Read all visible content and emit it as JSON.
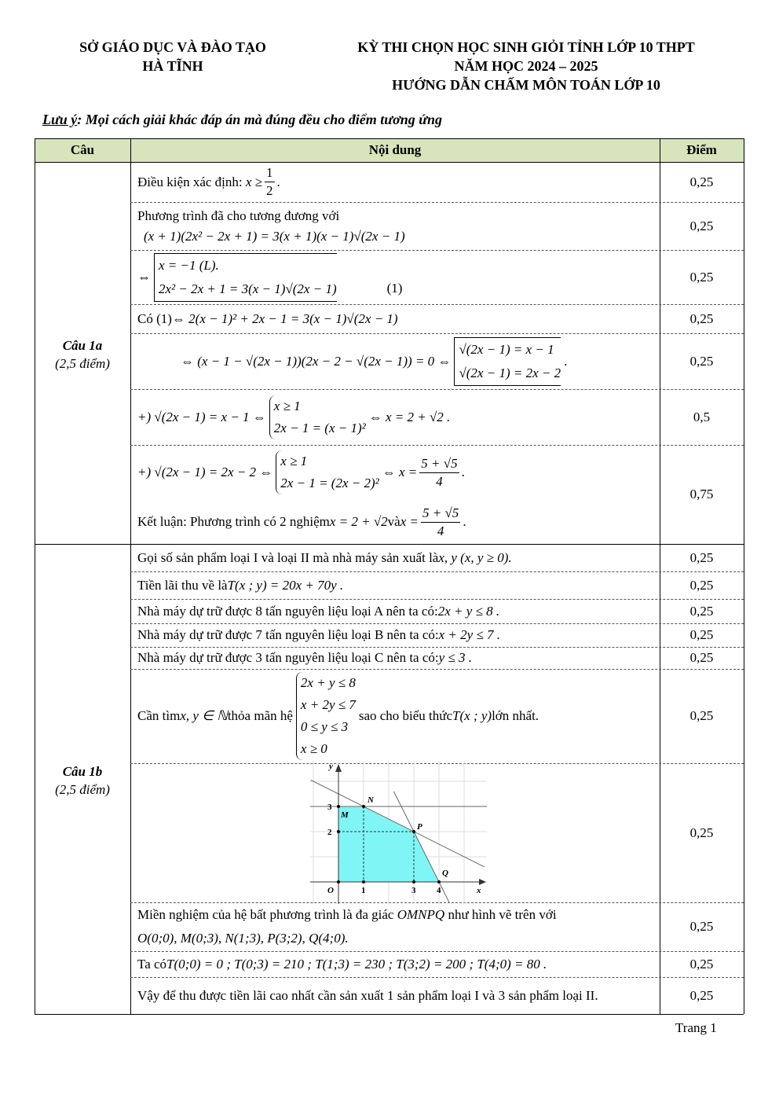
{
  "header": {
    "left1": "SỞ GIÁO DỤC VÀ ĐÀO TẠO",
    "left2": "HÀ TĨNH",
    "right1": "KỲ THI CHỌN HỌC SINH GIỎI TỈNH LỚP 10 THPT",
    "right2": "NĂM HỌC 2024 – 2025",
    "right3": "HƯỚNG DẪN CHẤM MÔN TOÁN LỚP 10"
  },
  "note": {
    "label": "Lưu ý",
    "text": ": Mọi cách giải khác đáp án mà đúng đều cho điểm tương ứng"
  },
  "table": {
    "headers": [
      "Câu",
      "Nội dung",
      "Điểm"
    ],
    "header_bg": "#d8e4bc"
  },
  "q1a": {
    "title": "Câu 1a",
    "points": "(2,5 điểm)",
    "r1": {
      "text": "Điều kiện xác định: ",
      "f": "x ≥ ",
      "num": "1",
      "den": "2",
      "end": ".",
      "score": "0,25"
    },
    "r2": {
      "text": "Phương trình đã cho tương đương với",
      "f": "(x + 1)(2x² − 2x + 1) = 3(x + 1)(x − 1)√(2x − 1)",
      "score": "0,25"
    },
    "r3": {
      "pre": "⇔",
      "l1": "x = −1 (L).",
      "l2": "2x² − 2x + 1 = 3(x − 1)√(2x − 1)",
      "tag": "(1)",
      "score": "0,25"
    },
    "r4": {
      "text": "Có (1) ",
      "f": "⇔ 2(x − 1)² + 2x − 1 = 3(x − 1)√(2x − 1)",
      "score": "0,25"
    },
    "r5": {
      "f": "⇔ (x − 1 − √(2x − 1))(2x − 2 − √(2x − 1)) = 0 ⇔",
      "l1": "√(2x − 1) = x − 1",
      "l2": "√(2x − 1) = 2x − 2",
      "end": ".",
      "score": "0,25"
    },
    "r6": {
      "f": "+) √(2x − 1) = x − 1 ⇔",
      "l1": "x ≥ 1",
      "l2": "2x − 1 = (x − 1)²",
      "f2": "⇔ x = 2 + √2 .",
      "score": "0,5"
    },
    "r7": {
      "f": "+) √(2x − 1) = 2x − 2 ⇔",
      "l1": "x ≥ 1",
      "l2": "2x − 1 = (2x − 2)²",
      "f2": "⇔ x =",
      "num": "5 + √5",
      "den": "4",
      "end": ".",
      "c1": "Kết luận: Phương trình có 2 nghiệm ",
      "c2": "x = 2 + √2",
      "c3": " và ",
      "c4": "x =",
      "score": "0,75"
    }
  },
  "q1b": {
    "title": "Câu 1b",
    "points": "(2,5 điểm)",
    "r1": {
      "text": "Gọi số sản phẩm loại I và loại II mà nhà máy sản xuất là ",
      "f": "x, y  (x, y ≥ 0).",
      "score": "0,25"
    },
    "r2": {
      "text": "Tiền lãi thu về là ",
      "f": "T(x ; y) = 20x + 70y .",
      "score": "0,25"
    },
    "r3": {
      "text": "Nhà máy dự trữ được 8 tấn nguyên liệu loại A nên ta có: ",
      "f": "2x + y ≤ 8 .",
      "score": "0,25"
    },
    "r4": {
      "text": "Nhà máy dự trữ được 7 tấn nguyên liệu loại B nên ta có: ",
      "f": "x + 2y ≤ 7 .",
      "score": "0,25"
    },
    "r5": {
      "text": "Nhà máy dự trữ được 3 tấn nguyên liệu loại C nên ta có: ",
      "f": "y ≤ 3 .",
      "score": "0,25"
    },
    "r6": {
      "t1": "Cần tìm ",
      "f1": "x, y ∈ ℕ",
      "t2": " thỏa mãn hệ",
      "sys": [
        "2x + y ≤ 8",
        "x + 2y ≤ 7",
        "0 ≤ y ≤ 3",
        "x ≥ 0"
      ],
      "t3": "sao cho biểu thức ",
      "f2": "T(x ; y)",
      "t4": " lớn nhất.",
      "score": "0,25"
    },
    "r7": {
      "score": "0,25"
    },
    "r8": {
      "t1": "Miền nghiệm của hệ bất phương trình là đa giác ",
      "f1": "OMNPQ",
      "t2": " như hình vẽ trên với",
      "f2": "O(0;0), M(0;3), N(1;3), P(3;2), Q(4;0).",
      "score": "0,25"
    },
    "r9": {
      "text": "Ta có ",
      "f": "T(0;0) = 0 ; T(0;3) = 210 ; T(1;3) = 230 ; T(3;2) = 200 ; T(4;0) = 80 .",
      "score": "0,25"
    },
    "r10": {
      "text": "Vậy để thu được tiền lãi cao nhất cần sản xuất 1 sản phẩm loại I và 3 sản phẩm loại II.",
      "score": "0,25"
    }
  },
  "graph": {
    "axis_x": "x",
    "axis_y": "y",
    "ticks_x": [
      "1",
      "3",
      "4"
    ],
    "ticks_y": [
      "2",
      "3"
    ],
    "origin": "O",
    "points": {
      "M": [
        0,
        3
      ],
      "N": [
        1,
        3
      ],
      "P": [
        3,
        2
      ],
      "Q": [
        4,
        0
      ]
    },
    "fill": "#7ff5f5"
  },
  "footer": {
    "page": "Trang 1"
  }
}
